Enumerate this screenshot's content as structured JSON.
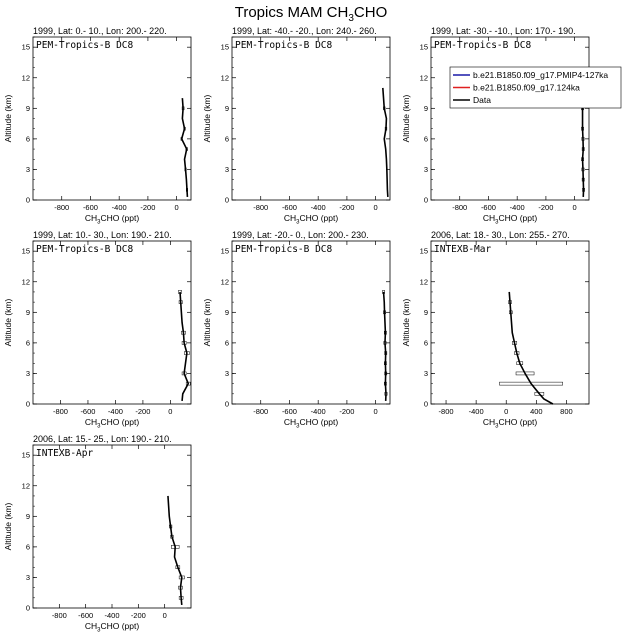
{
  "figure": {
    "title_main": "Tropics MAM CH",
    "title_sub": "3",
    "title_tail": "CHO"
  },
  "axis_labels": {
    "ylabel": "Altitude (km)",
    "xlabel_main": "CH",
    "xlabel_sub": "3",
    "xlabel_tail": "CHO (ppt)"
  },
  "legend": {
    "entries": [
      {
        "label": "b.e21.B1850.f09_g17.PMIP4-127ka",
        "color": "#1a1aa8"
      },
      {
        "label": "b.e21.B1850.f09_g17.124ka",
        "color": "#e02020"
      },
      {
        "label": "Data",
        "color": "#000000"
      }
    ]
  },
  "chart_data": [
    {
      "type": "line",
      "header": "1999, Lat: 0.- 10., Lon: 200.- 220.",
      "campaign": "PEM-Tropics-B DC8",
      "xlim": [
        -1000,
        100
      ],
      "xticks": [
        -800,
        -600,
        -400,
        -200,
        0
      ],
      "ylim": [
        0,
        16
      ],
      "yticks": [
        0,
        3,
        6,
        9,
        12,
        15
      ],
      "series": [
        {
          "values": [
            [
              75,
              0.3
            ],
            [
              72,
              1
            ],
            [
              68,
              2
            ],
            [
              62,
              3
            ],
            [
              55,
              4
            ],
            [
              70,
              5
            ],
            [
              35,
              6
            ],
            [
              55,
              7
            ],
            [
              40,
              8
            ],
            [
              45,
              9
            ],
            [
              40,
              10
            ]
          ]
        }
      ],
      "error_bars": [
        [
          72,
          1,
          5
        ],
        [
          62,
          3,
          5
        ],
        [
          70,
          5,
          6
        ],
        [
          35,
          6,
          5
        ],
        [
          55,
          7,
          6
        ],
        [
          45,
          9,
          7
        ]
      ]
    },
    {
      "type": "line",
      "header": "1999, Lat: -40.- -20., Lon: 240.- 260.",
      "campaign": "PEM-Tropics-B DC8",
      "xlim": [
        -1000,
        100
      ],
      "xticks": [
        -800,
        -600,
        -400,
        -200,
        0
      ],
      "ylim": [
        0,
        16
      ],
      "yticks": [
        0,
        3,
        6,
        9,
        12,
        15
      ],
      "series": [
        {
          "values": [
            [
              85,
              0.3
            ],
            [
              82,
              1
            ],
            [
              80,
              2
            ],
            [
              78,
              3
            ],
            [
              75,
              4
            ],
            [
              70,
              5
            ],
            [
              60,
              6
            ],
            [
              72,
              7
            ],
            [
              75,
              8
            ],
            [
              60,
              9
            ],
            [
              55,
              10
            ],
            [
              50,
              11
            ]
          ]
        }
      ],
      "error_bars": [
        [
          72,
          7,
          6
        ],
        [
          60,
          9,
          6
        ]
      ]
    },
    {
      "type": "line",
      "header": "1999, Lat: -30.- -10., Lon: 170.- 190.",
      "campaign": "PEM-Tropics-B DC8",
      "xlim": [
        -1000,
        100
      ],
      "xticks": [
        -800,
        -600,
        -400,
        -200,
        0
      ],
      "ylim": [
        0,
        16
      ],
      "yticks": [
        0,
        3,
        6,
        9,
        12,
        15
      ],
      "series": [
        {
          "values": [
            [
              60,
              0.3
            ],
            [
              62,
              1
            ],
            [
              60,
              2
            ],
            [
              58,
              3
            ],
            [
              55,
              4
            ],
            [
              60,
              5
            ],
            [
              58,
              6
            ],
            [
              55,
              7
            ],
            [
              55,
              8
            ],
            [
              55,
              9
            ],
            [
              52,
              10
            ],
            [
              50,
              11
            ]
          ]
        }
      ],
      "error_bars": [
        [
          62,
          1,
          8
        ],
        [
          60,
          2,
          8
        ],
        [
          58,
          3,
          8
        ],
        [
          55,
          4,
          8
        ],
        [
          60,
          5,
          8
        ],
        [
          58,
          6,
          8
        ],
        [
          55,
          7,
          8
        ],
        [
          55,
          9,
          8
        ],
        [
          50,
          11,
          8
        ]
      ]
    },
    {
      "type": "line",
      "header": "1999, Lat: 10.- 30., Lon: 190.- 210.",
      "campaign": "PEM-Tropics-B DC8",
      "xlim": [
        -1000,
        150
      ],
      "xticks": [
        -800,
        -600,
        -400,
        -200,
        0
      ],
      "ylim": [
        0,
        16
      ],
      "yticks": [
        0,
        3,
        6,
        9,
        12,
        15
      ],
      "series": [
        {
          "values": [
            [
              85,
              0.3
            ],
            [
              90,
              1
            ],
            [
              130,
              2
            ],
            [
              100,
              3
            ],
            [
              110,
              4
            ],
            [
              120,
              5
            ],
            [
              100,
              6
            ],
            [
              95,
              7
            ],
            [
              85,
              8
            ],
            [
              80,
              9
            ],
            [
              75,
              10
            ],
            [
              70,
              11
            ]
          ]
        }
      ],
      "error_bars": [
        [
          130,
          2,
          15
        ],
        [
          100,
          3,
          15
        ],
        [
          120,
          5,
          18
        ],
        [
          100,
          6,
          15
        ],
        [
          95,
          7,
          15
        ],
        [
          75,
          10,
          12
        ],
        [
          70,
          11,
          12
        ]
      ]
    },
    {
      "type": "line",
      "header": "1999, Lat: -20.- 0., Lon: 200.- 230.",
      "campaign": "PEM-Tropics-B DC8",
      "xlim": [
        -1000,
        100
      ],
      "xticks": [
        -800,
        -600,
        -400,
        -200,
        0
      ],
      "ylim": [
        0,
        16
      ],
      "yticks": [
        0,
        3,
        6,
        9,
        12,
        15
      ],
      "series": [
        {
          "values": [
            [
              70,
              0.3
            ],
            [
              72,
              1
            ],
            [
              68,
              2
            ],
            [
              70,
              3
            ],
            [
              68,
              4
            ],
            [
              70,
              5
            ],
            [
              65,
              6
            ],
            [
              68,
              7
            ],
            [
              65,
              8
            ],
            [
              62,
              9
            ],
            [
              60,
              10
            ],
            [
              55,
              11
            ]
          ]
        }
      ],
      "error_bars": [
        [
          72,
          1,
          8
        ],
        [
          68,
          2,
          8
        ],
        [
          70,
          3,
          8
        ],
        [
          68,
          4,
          8
        ],
        [
          70,
          5,
          8
        ],
        [
          65,
          6,
          8
        ],
        [
          68,
          7,
          8
        ],
        [
          62,
          9,
          8
        ],
        [
          55,
          11,
          8
        ]
      ]
    },
    {
      "type": "line",
      "header": "2006, Lat: 18.- 30., Lon: 255.- 270.",
      "campaign": "INTEXB-Mar",
      "xlim": [
        -1000,
        1100
      ],
      "xticks": [
        -800,
        -400,
        0,
        400,
        800
      ],
      "ylim": [
        0,
        16
      ],
      "yticks": [
        0,
        3,
        6,
        9,
        12,
        15
      ],
      "series": [
        {
          "values": [
            [
              620,
              0
            ],
            [
              500,
              0.5
            ],
            [
              440,
              1
            ],
            [
              330,
              2
            ],
            [
              250,
              3
            ],
            [
              180,
              4
            ],
            [
              140,
              5
            ],
            [
              110,
              6
            ],
            [
              80,
              7
            ],
            [
              70,
              8
            ],
            [
              60,
              9
            ],
            [
              50,
              10
            ],
            [
              40,
              11
            ]
          ]
        }
      ],
      "error_bars": [
        [
          440,
          1,
          60
        ],
        [
          330,
          2,
          420
        ],
        [
          250,
          3,
          120
        ],
        [
          180,
          4,
          40
        ],
        [
          140,
          5,
          30
        ],
        [
          110,
          6,
          30
        ],
        [
          60,
          9,
          20
        ],
        [
          50,
          10,
          20
        ]
      ]
    },
    {
      "type": "line",
      "header": "2006, Lat: 15.- 25., Lon: 190.- 210.",
      "campaign": "INTEXB-Apr",
      "xlim": [
        -1000,
        200
      ],
      "xticks": [
        -800,
        -600,
        -400,
        -200,
        0
      ],
      "ylim": [
        0,
        16
      ],
      "yticks": [
        0,
        3,
        6,
        9,
        12,
        15
      ],
      "series": [
        {
          "values": [
            [
              130,
              0.3
            ],
            [
              125,
              1
            ],
            [
              120,
              2
            ],
            [
              130,
              3
            ],
            [
              100,
              4
            ],
            [
              75,
              5
            ],
            [
              80,
              6
            ],
            [
              55,
              7
            ],
            [
              45,
              8
            ],
            [
              35,
              9
            ],
            [
              30,
              10
            ],
            [
              25,
              11
            ]
          ]
        }
      ],
      "error_bars": [
        [
          125,
          1,
          15
        ],
        [
          120,
          2,
          15
        ],
        [
          130,
          3,
          20
        ],
        [
          100,
          4,
          15
        ],
        [
          80,
          6,
          30
        ],
        [
          55,
          7,
          10
        ],
        [
          45,
          8,
          10
        ]
      ]
    }
  ]
}
